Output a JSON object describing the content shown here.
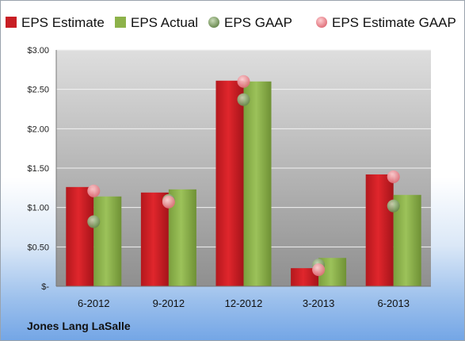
{
  "chart_data": {
    "type": "bar",
    "categories": [
      "6-2012",
      "9-2012",
      "12-2012",
      "3-2013",
      "6-2013"
    ],
    "series": [
      {
        "name": "EPS Estimate",
        "kind": "bar",
        "color": "#c81e24",
        "values": [
          1.26,
          1.19,
          2.61,
          0.23,
          1.42
        ]
      },
      {
        "name": "EPS Actual",
        "kind": "bar",
        "color": "#8db24a",
        "values": [
          1.14,
          1.23,
          2.6,
          0.36,
          1.16
        ]
      },
      {
        "name": "EPS GAAP",
        "kind": "marker",
        "color": "#7c9a5c",
        "values": [
          0.82,
          1.09,
          2.37,
          0.27,
          1.02
        ]
      },
      {
        "name": "EPS Estimate GAAP",
        "kind": "marker",
        "color": "#ea8a8f",
        "values": [
          1.21,
          1.07,
          2.6,
          0.21,
          1.39
        ]
      }
    ],
    "y_ticks": [
      "$3.00",
      "$2.50",
      "$2.00",
      "$1.50",
      "$1.00",
      "$0.50",
      "$-"
    ],
    "ylim": [
      0,
      3.0
    ],
    "grid": true,
    "legend_position": "top"
  },
  "footer": {
    "company": "Jones Lang LaSalle"
  }
}
